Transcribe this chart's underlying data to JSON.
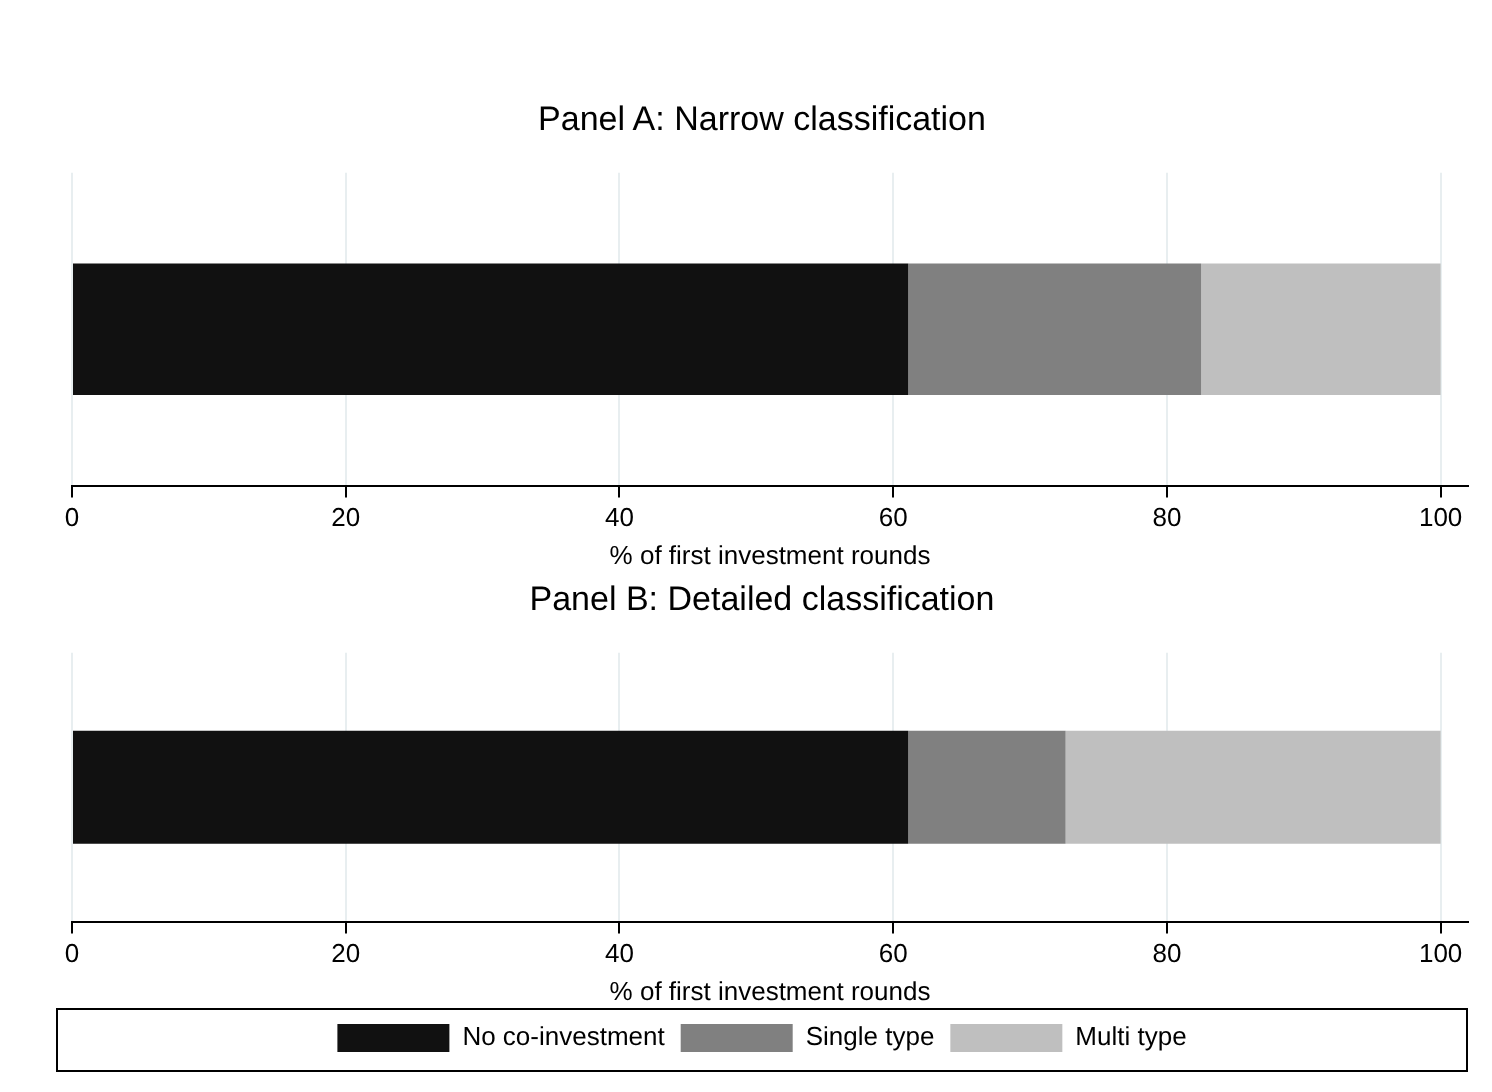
{
  "chart_data": [
    {
      "type": "bar",
      "orientation": "horizontal",
      "stacked": true,
      "title": "Panel A: Narrow classification",
      "xlabel": "% of first investment rounds",
      "categories": [
        null
      ],
      "series": [
        {
          "color": "#111111",
          "values": [
            61.1
          ]
        },
        {
          "color": "#808080",
          "values": [
            21.4
          ]
        },
        {
          "color": "#bfbfbf",
          "values": [
            17.5
          ]
        }
      ],
      "xlim": [
        0,
        102
      ],
      "xticks": [
        0,
        20,
        40,
        60,
        80,
        100
      ],
      "grid": "x",
      "legend": false
    },
    {
      "type": "bar",
      "orientation": "horizontal",
      "stacked": true,
      "title": "Panel B: Detailed classification",
      "xlabel": "% of first investment rounds",
      "categories": [
        null
      ],
      "series": [
        {
          "name": "No co-investment",
          "color": "#111111",
          "values": [
            61.1
          ]
        },
        {
          "name": "Single type",
          "color": "#808080",
          "values": [
            11.5
          ]
        },
        {
          "name": "Multi type",
          "color": "#bfbfbf",
          "values": [
            27.4
          ]
        }
      ],
      "xlim": [
        0,
        102
      ],
      "xticks": [
        0,
        20,
        40,
        60,
        80,
        100
      ],
      "grid": "x",
      "legend": "bottom"
    }
  ]
}
